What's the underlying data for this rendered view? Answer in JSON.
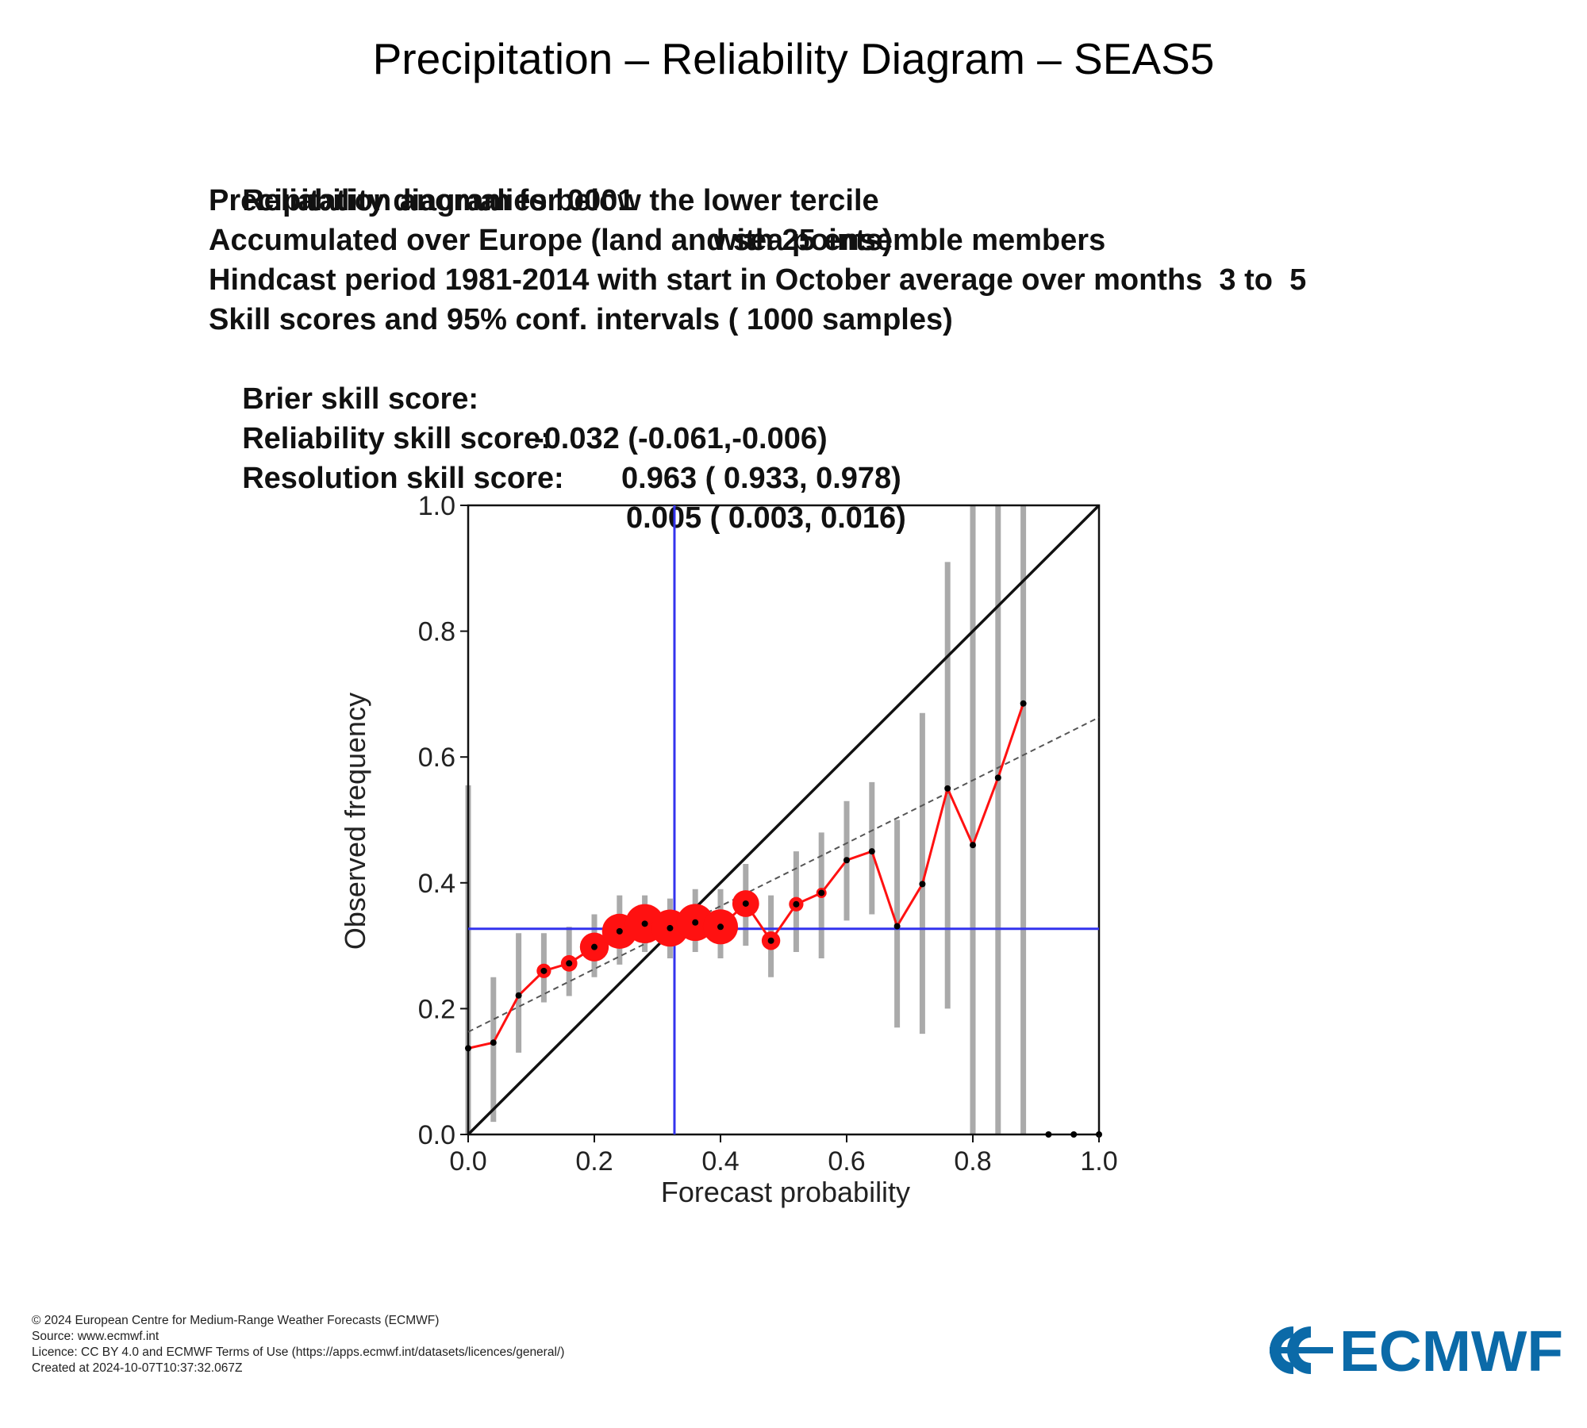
{
  "title": "Precipitation – Reliability Diagram – SEAS5",
  "info": {
    "line1_a": "Reliability diagram for 0001",
    "line1_b": "with 25 ensemble members",
    "line2": "Precipitation anomalies below the lower tercile",
    "line3": "Accumulated over Europe (land and sea points)",
    "line4": "Hindcast period 1981-2014 with start in October average over months  3 to  5",
    "line5": "Skill scores and 95% conf. intervals ( 1000 samples)",
    "bss_label": "Brier skill score:",
    "bss_value": "-0.032 (-0.061,-0.006)",
    "rel_label": "Reliability skill score:",
    "rel_value": "0.963 ( 0.933, 0.978)",
    "res_label": "Resolution skill score:",
    "res_value": "0.005 ( 0.003, 0.016)"
  },
  "chart_data": {
    "type": "scatter",
    "xlabel": "Forecast probability",
    "ylabel": "Observed frequency",
    "xlim": [
      0,
      1
    ],
    "ylim": [
      0,
      1
    ],
    "xticks": [
      "0.0",
      "0.2",
      "0.4",
      "0.6",
      "0.8",
      "1.0"
    ],
    "yticks": [
      "0.0",
      "0.2",
      "0.4",
      "0.6",
      "0.8",
      "1.0"
    ],
    "climatology": 0.327,
    "regression_line": {
      "intercept": 0.163,
      "slope": 0.5
    },
    "points": [
      {
        "x": 0.0,
        "y": 0.137,
        "lo": 0.0,
        "hi": 0.555,
        "size": 0
      },
      {
        "x": 0.04,
        "y": 0.146,
        "lo": 0.02,
        "hi": 0.25,
        "size": 0
      },
      {
        "x": 0.08,
        "y": 0.221,
        "lo": 0.13,
        "hi": 0.32,
        "size": 2
      },
      {
        "x": 0.12,
        "y": 0.26,
        "lo": 0.21,
        "hi": 0.32,
        "size": 7
      },
      {
        "x": 0.16,
        "y": 0.272,
        "lo": 0.22,
        "hi": 0.33,
        "size": 8
      },
      {
        "x": 0.2,
        "y": 0.298,
        "lo": 0.25,
        "hi": 0.35,
        "size": 14
      },
      {
        "x": 0.24,
        "y": 0.323,
        "lo": 0.27,
        "hi": 0.38,
        "size": 17
      },
      {
        "x": 0.28,
        "y": 0.335,
        "lo": 0.29,
        "hi": 0.38,
        "size": 19
      },
      {
        "x": 0.32,
        "y": 0.328,
        "lo": 0.28,
        "hi": 0.375,
        "size": 18
      },
      {
        "x": 0.36,
        "y": 0.337,
        "lo": 0.29,
        "hi": 0.39,
        "size": 18
      },
      {
        "x": 0.4,
        "y": 0.33,
        "lo": 0.28,
        "hi": 0.39,
        "size": 17
      },
      {
        "x": 0.44,
        "y": 0.367,
        "lo": 0.3,
        "hi": 0.43,
        "size": 13
      },
      {
        "x": 0.48,
        "y": 0.308,
        "lo": 0.25,
        "hi": 0.38,
        "size": 9
      },
      {
        "x": 0.52,
        "y": 0.366,
        "lo": 0.29,
        "hi": 0.45,
        "size": 7
      },
      {
        "x": 0.56,
        "y": 0.384,
        "lo": 0.28,
        "hi": 0.48,
        "size": 5
      },
      {
        "x": 0.6,
        "y": 0.436,
        "lo": 0.34,
        "hi": 0.53,
        "size": 3
      },
      {
        "x": 0.64,
        "y": 0.45,
        "lo": 0.35,
        "hi": 0.56,
        "size": 2
      },
      {
        "x": 0.68,
        "y": 0.331,
        "lo": 0.17,
        "hi": 0.5,
        "size": 1
      },
      {
        "x": 0.72,
        "y": 0.398,
        "lo": 0.16,
        "hi": 0.67,
        "size": 1
      },
      {
        "x": 0.76,
        "y": 0.55,
        "lo": 0.2,
        "hi": 0.91,
        "size": 0
      },
      {
        "x": 0.8,
        "y": 0.46,
        "lo": 0.0,
        "hi": 1.0,
        "size": 0
      },
      {
        "x": 0.84,
        "y": 0.567,
        "lo": 0.0,
        "hi": 1.0,
        "size": 0
      },
      {
        "x": 0.88,
        "y": 0.685,
        "lo": 0.0,
        "hi": 1.0,
        "size": 0
      },
      {
        "x": 0.92,
        "y": 0.0,
        "lo": null,
        "hi": null,
        "size": 0
      },
      {
        "x": 0.96,
        "y": 0.0,
        "lo": null,
        "hi": null,
        "size": 0
      },
      {
        "x": 1.0,
        "y": 0.0,
        "lo": null,
        "hi": null,
        "size": 0
      }
    ]
  },
  "footer": {
    "line1": "© 2024 European Centre for Medium-Range Weather Forecasts (ECMWF)",
    "line2": "Source: www.ecmwf.int",
    "line3": "Licence: CC BY 4.0 and ECMWF Terms of Use (https://apps.ecmwf.int/datasets/licences/general/)",
    "line4": "Created at 2024-10-07T10:37:32.067Z"
  },
  "logo": {
    "text": "ECMWF",
    "color": "#0b6aa8"
  },
  "colors": {
    "diagonal": "#111111",
    "climatology": "#3333ee",
    "series": "#ff1111",
    "errorbar": "#aaaaaa",
    "regression": "#555555"
  }
}
